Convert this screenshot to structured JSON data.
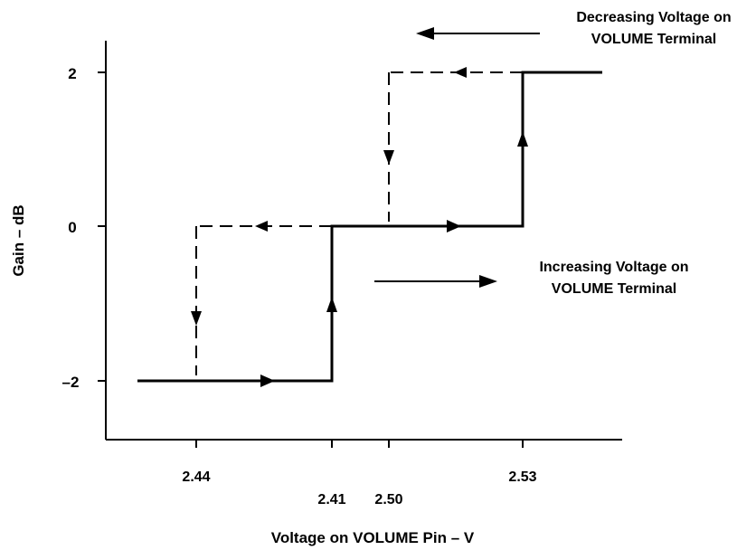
{
  "chart_data": {
    "type": "line",
    "title": "",
    "xlabel": "Voltage on VOLUME Pin – V",
    "ylabel": "Gain – dB",
    "grid": false,
    "legend": "none",
    "y_ticks": [
      "2",
      "0",
      "–2"
    ],
    "y_values": [
      2,
      0,
      -2
    ],
    "x_ticks": [
      {
        "label": "2.44",
        "row": "upper"
      },
      {
        "label": "2.41",
        "row": "lower"
      },
      {
        "label": "2.50",
        "row": "lower"
      },
      {
        "label": "2.53",
        "row": "upper"
      }
    ],
    "series": [
      {
        "style": "solid",
        "direction": "increasing",
        "x": [
          "start",
          "2.41",
          "2.41",
          "2.53",
          "2.53",
          "end"
        ],
        "y": [
          -2,
          -2,
          0,
          0,
          2,
          2
        ]
      },
      {
        "style": "dashed",
        "direction": "decreasing",
        "x": [
          "end",
          "2.50",
          "2.50",
          "2.44",
          "2.44"
        ],
        "y": [
          2,
          2,
          0,
          0,
          -2
        ]
      }
    ],
    "annotations": [
      {
        "lines": [
          "Decreasing Voltage on",
          "VOLUME Terminal"
        ],
        "arrow": "left"
      },
      {
        "lines": [
          "Increasing Voltage on",
          "VOLUME Terminal"
        ],
        "arrow": "right"
      }
    ]
  },
  "colors": {
    "ink": "#000000",
    "background": "#ffffff"
  }
}
